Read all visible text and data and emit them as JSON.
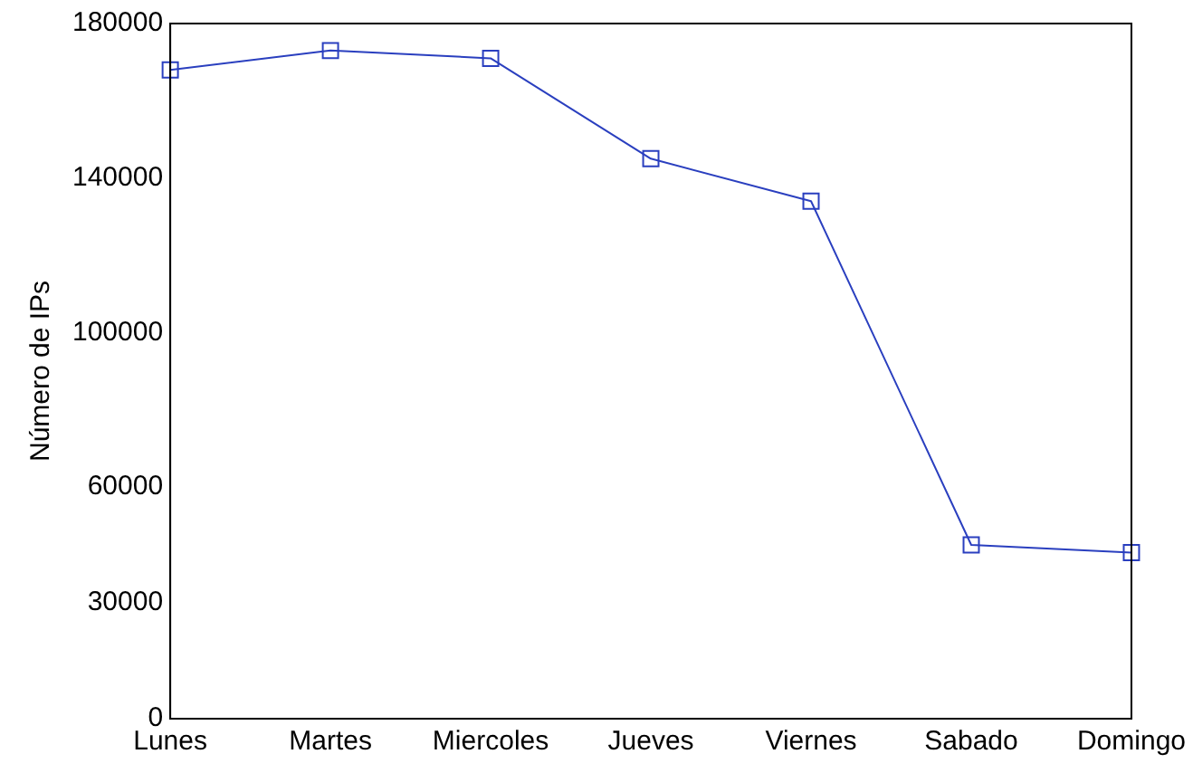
{
  "chart_data": {
    "type": "line",
    "ylabel": "Número de IPs",
    "categories": [
      "Lunes",
      "Martes",
      "Miercoles",
      "Jueves",
      "Viernes",
      "Sabado",
      "Domingo"
    ],
    "series": [
      {
        "color": "#2a3fbf",
        "values": [
          168000,
          173000,
          171000,
          145000,
          134000,
          45000,
          43000
        ]
      }
    ],
    "ylim": [
      0,
      180000
    ],
    "yticks": [
      0,
      30000,
      60000,
      100000,
      140000,
      180000
    ],
    "grid": false,
    "legend": false,
    "marker": "square",
    "line_style": "solid"
  }
}
